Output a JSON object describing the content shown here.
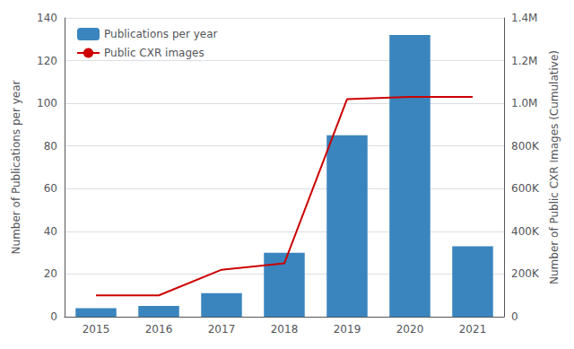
{
  "chart_data": {
    "type": "bar",
    "categories": [
      "2015",
      "2016",
      "2017",
      "2018",
      "2019",
      "2020",
      "2021"
    ],
    "series": [
      {
        "name": "Publications per year",
        "type": "bar",
        "color": "#3a85be",
        "values": [
          4,
          5,
          11,
          30,
          85,
          132,
          33
        ]
      },
      {
        "name": "Public CXR images",
        "type": "line",
        "color": "#cc0000",
        "axis": "y2",
        "values": [
          100000,
          100000,
          220000,
          250000,
          1020000,
          1030000,
          1030000
        ]
      }
    ],
    "ylabel": "Number of Publications per year",
    "y2label": "Number of Public CXR Images (Cumulative)",
    "ylim": [
      0,
      140
    ],
    "yticks": [
      0,
      20,
      40,
      60,
      80,
      100,
      120,
      140
    ],
    "y2lim": [
      0,
      1400000
    ],
    "y2ticks": [
      0,
      {
        "value": 200000,
        "label": "200K"
      },
      {
        "value": 400000,
        "label": "400K"
      },
      {
        "value": 600000,
        "label": "600K"
      },
      {
        "value": 800000,
        "label": "800K"
      },
      {
        "value": 1000000,
        "label": "1.0M"
      },
      {
        "value": 1200000,
        "label": "1.2M"
      },
      {
        "value": 1400000,
        "label": "1.4M"
      }
    ],
    "grid": true,
    "legend": "upper left"
  }
}
